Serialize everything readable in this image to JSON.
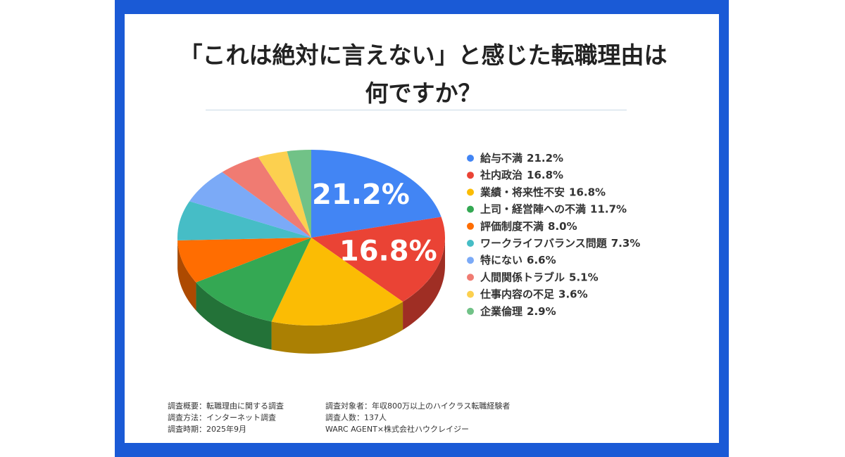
{
  "chart_data": {
    "type": "pie",
    "title": "「これは絶対に言えない」と感じた転職理由は何ですか？",
    "categories": [
      "給与不満",
      "社内政治",
      "業績・将来性不安",
      "上司・経営陣への不満",
      "評価制度不満",
      "ワークライフバランス問題",
      "特にない",
      "人間関係トラブル",
      "仕事内容の不足",
      "企業倫理"
    ],
    "values": [
      21.2,
      16.8,
      16.8,
      11.7,
      8.0,
      7.3,
      6.6,
      5.1,
      3.6,
      2.9
    ],
    "value_labels": [
      "21.2%",
      "16.8%",
      "16.8%",
      "11.7%",
      "8.0%",
      "7.3%",
      "6.6%",
      "5.1%",
      "3.6%",
      "2.9%"
    ],
    "colors": [
      "#4285f4",
      "#ea4335",
      "#fbbc04",
      "#34a853",
      "#ff6d01",
      "#46bdc6",
      "#7baaf7",
      "#f07b72",
      "#fcd04f",
      "#71c287"
    ],
    "notes": [
      [
        "調査概要：転職理由に関する調査",
        "調査方法：インターネット調査",
        "調査時期：2025年9月"
      ],
      [
        "調査対象者：年収800万以上のハイクラス転職経験者",
        "調査人数：137人",
        "WARC AGENT×株式会社ハウクレイジー"
      ]
    ]
  }
}
